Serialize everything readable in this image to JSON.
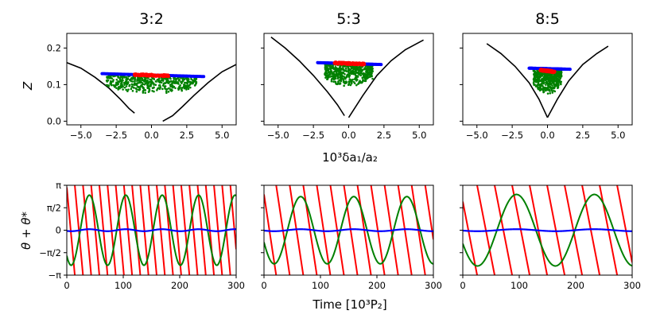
{
  "figure": {
    "top_xlabel": "10³δa₁/a₂",
    "top_ylabel": "Z",
    "bottom_xlabel": "Time [10³P₂]",
    "bottom_ylabel": "θ + θ*"
  },
  "colors": {
    "black": "#000000",
    "blue": "#0000ff",
    "red": "#ff0000",
    "green": "#008000"
  },
  "chart_data": [
    {
      "type": "scatter",
      "title": "3:2",
      "xlim": [
        -6,
        6
      ],
      "ylim": [
        -0.01,
        0.24
      ],
      "xticks": [
        -5.0,
        -2.5,
        0.0,
        2.5,
        5.0
      ],
      "xtick_labels": [
        "−5.0",
        "−2.5",
        "0.0",
        "2.5",
        "5.0"
      ],
      "yticks": [
        0.0,
        0.1,
        0.2
      ],
      "ytick_labels": [
        "0.0",
        "0.1",
        "0.2"
      ],
      "separatrix_left": [
        [
          -6.0,
          0.16
        ],
        [
          -5.0,
          0.145
        ],
        [
          -4.0,
          0.12
        ],
        [
          -3.0,
          0.09
        ],
        [
          -2.2,
          0.06
        ],
        [
          -1.6,
          0.035
        ],
        [
          -1.2,
          0.022
        ]
      ],
      "separatrix_right": [
        [
          0.8,
          0.0
        ],
        [
          1.5,
          0.015
        ],
        [
          2.2,
          0.04
        ],
        [
          3.0,
          0.07
        ],
        [
          4.0,
          0.105
        ],
        [
          5.0,
          0.135
        ],
        [
          6.0,
          0.155
        ]
      ],
      "series": [
        {
          "name": "blue",
          "color": "#0000ff",
          "x_range": [
            -3.5,
            3.7
          ],
          "z_start": 0.13,
          "z_end": 0.122
        },
        {
          "name": "red",
          "color": "#ff0000",
          "x_range": [
            -1.2,
            1.2
          ],
          "z_start": 0.127,
          "z_end": 0.124
        },
        {
          "name": "green",
          "color": "#008000",
          "x_range": [
            -3.2,
            3.2
          ],
          "z_low": 0.075,
          "z_high": 0.125
        }
      ]
    },
    {
      "type": "scatter",
      "title": "5:3",
      "xlim": [
        -6,
        6
      ],
      "ylim": [
        -0.01,
        0.24
      ],
      "xticks": [
        -5.0,
        -2.5,
        0.0,
        2.5,
        5.0
      ],
      "xtick_labels": [
        "−5.0",
        "−2.5",
        "0.0",
        "2.5",
        "5.0"
      ],
      "yticks": [
        0.0,
        0.1,
        0.2
      ],
      "ytick_labels": [],
      "separatrix_left": [
        [
          -5.5,
          0.23
        ],
        [
          -4.5,
          0.2
        ],
        [
          -3.5,
          0.165
        ],
        [
          -2.5,
          0.125
        ],
        [
          -1.5,
          0.08
        ],
        [
          -0.8,
          0.045
        ],
        [
          -0.3,
          0.015
        ]
      ],
      "separatrix_right": [
        [
          0.0,
          0.01
        ],
        [
          1.0,
          0.07
        ],
        [
          2.0,
          0.125
        ],
        [
          3.0,
          0.165
        ],
        [
          4.0,
          0.195
        ],
        [
          5.3,
          0.222
        ]
      ],
      "series": [
        {
          "name": "blue",
          "color": "#0000ff",
          "x_range": [
            -2.2,
            2.3
          ],
          "z_start": 0.16,
          "z_end": 0.155
        },
        {
          "name": "red",
          "color": "#ff0000",
          "x_range": [
            -1.0,
            1.1
          ],
          "z_start": 0.159,
          "z_end": 0.156
        },
        {
          "name": "green",
          "color": "#008000",
          "x_range": [
            -1.7,
            1.7
          ],
          "z_low": 0.095,
          "z_high": 0.155
        }
      ]
    },
    {
      "type": "scatter",
      "title": "8:5",
      "xlim": [
        -6,
        6
      ],
      "ylim": [
        -0.01,
        0.24
      ],
      "xticks": [
        -5.0,
        -2.5,
        0.0,
        2.5,
        5.0
      ],
      "xtick_labels": [
        "−5.0",
        "−2.5",
        "0.0",
        "2.5",
        "5.0"
      ],
      "yticks": [
        0.0,
        0.1,
        0.2
      ],
      "ytick_labels": [],
      "separatrix_left": [
        [
          -4.3,
          0.212
        ],
        [
          -3.3,
          0.185
        ],
        [
          -2.3,
          0.15
        ],
        [
          -1.3,
          0.105
        ],
        [
          -0.6,
          0.06
        ],
        [
          0.0,
          0.01
        ]
      ],
      "separatrix_right": [
        [
          0.0,
          0.01
        ],
        [
          0.7,
          0.06
        ],
        [
          1.5,
          0.11
        ],
        [
          2.5,
          0.155
        ],
        [
          3.5,
          0.185
        ],
        [
          4.3,
          0.205
        ]
      ],
      "series": [
        {
          "name": "blue",
          "color": "#0000ff",
          "x_range": [
            -1.3,
            1.6
          ],
          "z_start": 0.145,
          "z_end": 0.142
        },
        {
          "name": "red",
          "color": "#ff0000",
          "x_range": [
            -0.5,
            0.5
          ],
          "z_start": 0.14,
          "z_end": 0.135
        },
        {
          "name": "green",
          "color": "#008000",
          "x_range": [
            -1.0,
            1.0
          ],
          "z_low": 0.075,
          "z_high": 0.14
        }
      ]
    },
    {
      "type": "line",
      "title": "",
      "xlim": [
        0,
        300
      ],
      "ylim": [
        -3.1416,
        3.1416
      ],
      "xticks": [
        0,
        100,
        200,
        300
      ],
      "xtick_labels": [
        "0",
        "100",
        "200",
        "300"
      ],
      "yticks": [
        -3.1416,
        -1.5708,
        0,
        1.5708,
        3.1416
      ],
      "ytick_labels": [
        "−π",
        "−π/2",
        "0",
        "π/2",
        "π"
      ],
      "series": [
        {
          "name": "red",
          "color": "#ff0000",
          "kind": "sawtooth",
          "period_time": 14.5,
          "phase": 3.0
        },
        {
          "name": "green",
          "color": "#008000",
          "kind": "sine",
          "period_time": 64.5,
          "amplitude": 2.45,
          "phase_time": 40
        },
        {
          "name": "blue",
          "color": "#0000ff",
          "kind": "sine",
          "period_time": 64.5,
          "amplitude": 0.07,
          "phase_time": 40
        }
      ]
    },
    {
      "type": "line",
      "title": "",
      "xlim": [
        0,
        300
      ],
      "ylim": [
        -3.1416,
        3.1416
      ],
      "xticks": [
        0,
        100,
        200,
        300
      ],
      "xtick_labels": [
        "0",
        "100",
        "200",
        "300"
      ],
      "yticks": [
        -3.1416,
        -1.5708,
        0,
        1.5708,
        3.1416
      ],
      "ytick_labels": [],
      "series": [
        {
          "name": "red",
          "color": "#ff0000",
          "kind": "sawtooth",
          "period_time": 24,
          "phase": 2.5
        },
        {
          "name": "green",
          "color": "#008000",
          "kind": "sine",
          "period_time": 94,
          "amplitude": 2.35,
          "phase_time": 65
        },
        {
          "name": "blue",
          "color": "#0000ff",
          "kind": "sine",
          "period_time": 94,
          "amplitude": 0.07,
          "phase_time": 65
        }
      ]
    },
    {
      "type": "line",
      "title": "",
      "xlim": [
        0,
        300
      ],
      "ylim": [
        -3.1416,
        3.1416
      ],
      "xticks": [
        0,
        100,
        200,
        300
      ],
      "xtick_labels": [
        "0",
        "100",
        "200",
        "300"
      ],
      "yticks": [
        -3.1416,
        -1.5708,
        0,
        1.5708,
        3.1416
      ],
      "ytick_labels": [],
      "series": [
        {
          "name": "red",
          "color": "#ff0000",
          "kind": "sawtooth",
          "period_time": 31,
          "phase": 2.0
        },
        {
          "name": "green",
          "color": "#008000",
          "kind": "sine",
          "period_time": 138,
          "amplitude": 2.5,
          "phase_time": 95
        },
        {
          "name": "blue",
          "color": "#0000ff",
          "kind": "sine",
          "period_time": 138,
          "amplitude": 0.07,
          "phase_time": 95
        }
      ]
    }
  ]
}
